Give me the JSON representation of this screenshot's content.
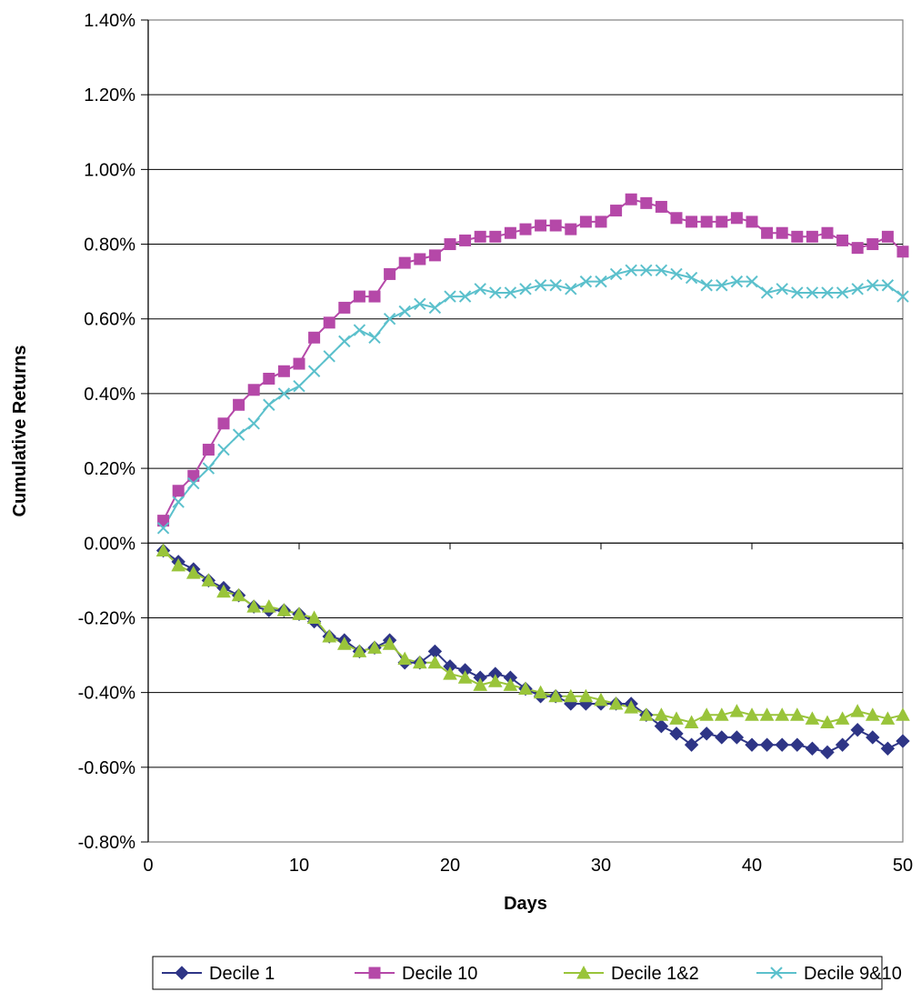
{
  "chart_data": {
    "type": "line",
    "title": "",
    "xlabel": "Days",
    "ylabel": "Cumulative Returns",
    "xlim": [
      0,
      50
    ],
    "ylim": [
      -0.8,
      1.4
    ],
    "x_ticks": [
      0,
      10,
      20,
      30,
      40,
      50
    ],
    "y_ticks": [
      -0.8,
      -0.6,
      -0.4,
      -0.2,
      0,
      0.2,
      0.4,
      0.6,
      0.8,
      1.0,
      1.2,
      1.4
    ],
    "x_tick_labels": [
      "0",
      "10",
      "20",
      "30",
      "40",
      "50"
    ],
    "y_tick_labels": [
      "-0.80%",
      "-0.60%",
      "-0.40%",
      "-0.20%",
      "0.00%",
      "0.20%",
      "0.40%",
      "0.60%",
      "0.80%",
      "1.00%",
      "1.20%",
      "1.40%"
    ],
    "y_unit": "%",
    "grid": "horizontal",
    "legend_position": "bottom",
    "x": [
      1,
      2,
      3,
      4,
      5,
      6,
      7,
      8,
      9,
      10,
      11,
      12,
      13,
      14,
      15,
      16,
      17,
      18,
      19,
      20,
      21,
      22,
      23,
      24,
      25,
      26,
      27,
      28,
      29,
      30,
      31,
      32,
      33,
      34,
      35,
      36,
      37,
      38,
      39,
      40,
      41,
      42,
      43,
      44,
      45,
      46,
      47,
      48,
      49,
      50
    ],
    "series": [
      {
        "name": "Decile 1",
        "color": "#2E3586",
        "marker": "diamond",
        "values": [
          -0.02,
          -0.05,
          -0.07,
          -0.1,
          -0.12,
          -0.14,
          -0.17,
          -0.18,
          -0.18,
          -0.19,
          -0.21,
          -0.25,
          -0.26,
          -0.29,
          -0.28,
          -0.26,
          -0.32,
          -0.32,
          -0.29,
          -0.33,
          -0.34,
          -0.36,
          -0.35,
          -0.36,
          -0.39,
          -0.41,
          -0.41,
          -0.43,
          -0.43,
          -0.43,
          -0.43,
          -0.43,
          -0.46,
          -0.49,
          -0.51,
          -0.54,
          -0.51,
          -0.52,
          -0.52,
          -0.54,
          -0.54,
          -0.54,
          -0.54,
          -0.55,
          -0.56,
          -0.54,
          -0.5,
          -0.52,
          -0.55,
          -0.53
        ]
      },
      {
        "name": "Decile 10",
        "color": "#B548A8",
        "marker": "square",
        "values": [
          0.06,
          0.14,
          0.18,
          0.25,
          0.32,
          0.37,
          0.41,
          0.44,
          0.46,
          0.48,
          0.55,
          0.59,
          0.63,
          0.66,
          0.66,
          0.72,
          0.75,
          0.76,
          0.77,
          0.8,
          0.81,
          0.82,
          0.82,
          0.83,
          0.84,
          0.85,
          0.85,
          0.84,
          0.86,
          0.86,
          0.89,
          0.92,
          0.91,
          0.9,
          0.87,
          0.86,
          0.86,
          0.86,
          0.87,
          0.86,
          0.83,
          0.83,
          0.82,
          0.82,
          0.83,
          0.81,
          0.79,
          0.8,
          0.82,
          0.78
        ]
      },
      {
        "name": "Decile 1&2",
        "color": "#99C43A",
        "marker": "triangle",
        "values": [
          -0.02,
          -0.06,
          -0.08,
          -0.1,
          -0.13,
          -0.14,
          -0.17,
          -0.17,
          -0.18,
          -0.19,
          -0.2,
          -0.25,
          -0.27,
          -0.29,
          -0.28,
          -0.27,
          -0.31,
          -0.32,
          -0.32,
          -0.35,
          -0.36,
          -0.38,
          -0.37,
          -0.38,
          -0.39,
          -0.4,
          -0.41,
          -0.41,
          -0.41,
          -0.42,
          -0.43,
          -0.44,
          -0.46,
          -0.46,
          -0.47,
          -0.48,
          -0.46,
          -0.46,
          -0.45,
          -0.46,
          -0.46,
          -0.46,
          -0.46,
          -0.47,
          -0.48,
          -0.47,
          -0.45,
          -0.46,
          -0.47,
          -0.46
        ]
      },
      {
        "name": "Decile 9&10",
        "color": "#5BC0CC",
        "marker": "x",
        "values": [
          0.04,
          0.11,
          0.16,
          0.2,
          0.25,
          0.29,
          0.32,
          0.37,
          0.4,
          0.42,
          0.46,
          0.5,
          0.54,
          0.57,
          0.55,
          0.6,
          0.62,
          0.64,
          0.63,
          0.66,
          0.66,
          0.68,
          0.67,
          0.67,
          0.68,
          0.69,
          0.69,
          0.68,
          0.7,
          0.7,
          0.72,
          0.73,
          0.73,
          0.73,
          0.72,
          0.71,
          0.69,
          0.69,
          0.7,
          0.7,
          0.67,
          0.68,
          0.67,
          0.67,
          0.67,
          0.67,
          0.68,
          0.69,
          0.69,
          0.66
        ]
      }
    ]
  }
}
